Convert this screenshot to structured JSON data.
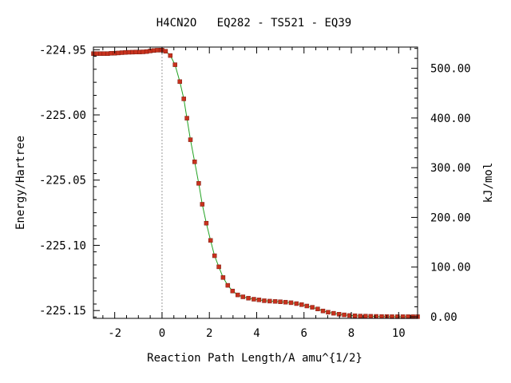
{
  "chart_data": {
    "type": "line",
    "title": "H4CN2O   EQ282 - TS521 - EQ39",
    "xlabel": "Reaction Path Length/A amu^{1/2}",
    "ylabel": "Energy/Hartree",
    "y2label": "kJ/mol",
    "xlim": [
      -2.9,
      10.8
    ],
    "ylim": [
      -225.156,
      -224.948
    ],
    "y2lim": [
      -3.2,
      542.7
    ],
    "x_ticks": [
      -2,
      0,
      2,
      4,
      6,
      8,
      10
    ],
    "x_tick_labels": [
      "-2",
      "0",
      "2",
      "4",
      "6",
      "8",
      "10"
    ],
    "y_ticks": [
      -225.15,
      -225.1,
      -225.05,
      -225.0,
      -224.95
    ],
    "y_tick_labels": [
      "-225.15",
      "-225.10",
      "-225.05",
      "-225.00",
      "-224.95"
    ],
    "y2_ticks": [
      0,
      100,
      200,
      300,
      400,
      500
    ],
    "y2_tick_labels": [
      "0.00",
      "100.00",
      "200.00",
      "300.00",
      "400.00",
      "500.00"
    ],
    "ts_marker_x": 0.0,
    "grid": false,
    "legend": "none",
    "line_color": "#1fa11f",
    "marker_color": "#c8321e",
    "marker_edge_color": "#7a1a0e",
    "marker_line_color": "#999999",
    "series": [
      {
        "x": [
          -2.9,
          -2.75,
          -2.6,
          -2.45,
          -2.3,
          -2.15,
          -2.0,
          -1.85,
          -1.7,
          -1.55,
          -1.4,
          -1.25,
          -1.1,
          -0.95,
          -0.8,
          -0.65,
          -0.5,
          -0.35,
          -0.2,
          -0.05,
          0.0,
          0.15,
          0.35,
          0.55,
          0.75,
          0.92,
          1.05,
          1.2,
          1.38,
          1.55,
          1.7,
          1.87,
          2.05,
          2.22,
          2.4,
          2.58,
          2.78,
          2.98,
          3.2,
          3.42,
          3.65,
          3.88,
          4.1,
          4.32,
          4.55,
          4.78,
          5.0,
          5.22,
          5.45,
          5.68,
          5.9,
          6.12,
          6.35,
          6.58,
          6.8,
          7.02,
          7.25,
          7.48,
          7.7,
          7.92,
          8.15,
          8.38,
          8.6,
          8.82,
          9.05,
          9.28,
          9.5,
          9.72,
          9.95,
          10.18,
          10.4,
          10.6,
          10.8
        ],
        "y": [
          -224.953,
          -224.953,
          -224.953,
          -224.953,
          -224.953,
          -224.9528,
          -224.9527,
          -224.9525,
          -224.9523,
          -224.9521,
          -224.952,
          -224.9519,
          -224.9518,
          -224.9518,
          -224.9517,
          -224.9514,
          -224.951,
          -224.9506,
          -224.9504,
          -224.9503,
          -224.9503,
          -224.9512,
          -224.9545,
          -224.9615,
          -224.9745,
          -224.9877,
          -225.0025,
          -225.019,
          -225.036,
          -225.0525,
          -225.0685,
          -225.083,
          -225.0962,
          -225.108,
          -225.1165,
          -225.1247,
          -225.1307,
          -225.135,
          -225.138,
          -225.1395,
          -225.1405,
          -225.1413,
          -225.1418,
          -225.1425,
          -225.1428,
          -225.143,
          -225.1433,
          -225.1436,
          -225.144,
          -225.1447,
          -225.1455,
          -225.1465,
          -225.1475,
          -225.1488,
          -225.1503,
          -225.1513,
          -225.1521,
          -225.1528,
          -225.1533,
          -225.1538,
          -225.154,
          -225.1542,
          -225.1543,
          -225.1544,
          -225.1545,
          -225.1546,
          -225.1546,
          -225.1547,
          -225.1547,
          -225.1547,
          -225.1547,
          -225.1547,
          -225.1547
        ]
      }
    ]
  }
}
